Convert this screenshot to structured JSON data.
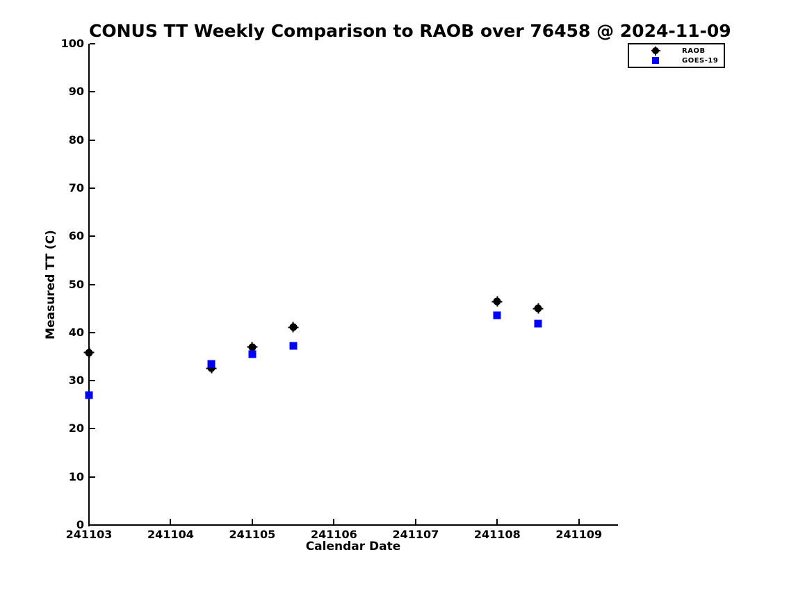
{
  "chart_data": {
    "type": "scatter",
    "title": "CONUS TT Weekly Comparison to RAOB over 76458 @ 2024-11-09",
    "xlabel": "Calendar Date",
    "ylabel": "Measured TT (C)",
    "axes": {
      "xlim": [
        241103,
        241109.47
      ],
      "ylim": [
        0,
        100
      ],
      "x_ticks": [
        241103,
        241104,
        241105,
        241106,
        241107,
        241108,
        241109
      ],
      "y_ticks": [
        0,
        10,
        20,
        30,
        40,
        50,
        60,
        70,
        80,
        90,
        100
      ],
      "grid": false,
      "tick_direction": "in"
    },
    "legend": {
      "position": "top-right-outside",
      "entries": [
        {
          "label": "RAOB",
          "marker": "circle",
          "color": "#000000"
        },
        {
          "label": "GOES-19",
          "marker": "square",
          "color": "#0000ff"
        }
      ]
    },
    "series": [
      {
        "name": "RAOB",
        "marker": "circle",
        "color": "#000000",
        "points": [
          {
            "x": 241103.0,
            "y": 35.8
          },
          {
            "x": 241104.5,
            "y": 32.6
          },
          {
            "x": 241105.0,
            "y": 37.0
          },
          {
            "x": 241105.5,
            "y": 41.1
          },
          {
            "x": 241108.0,
            "y": 46.4
          },
          {
            "x": 241108.5,
            "y": 45.0
          }
        ]
      },
      {
        "name": "GOES-19",
        "marker": "square",
        "color": "#0000ff",
        "points": [
          {
            "x": 241103.0,
            "y": 27.0
          },
          {
            "x": 241104.5,
            "y": 33.5
          },
          {
            "x": 241105.0,
            "y": 35.5
          },
          {
            "x": 241105.5,
            "y": 37.3
          },
          {
            "x": 241108.0,
            "y": 43.6
          },
          {
            "x": 241108.5,
            "y": 41.8
          }
        ]
      }
    ]
  }
}
